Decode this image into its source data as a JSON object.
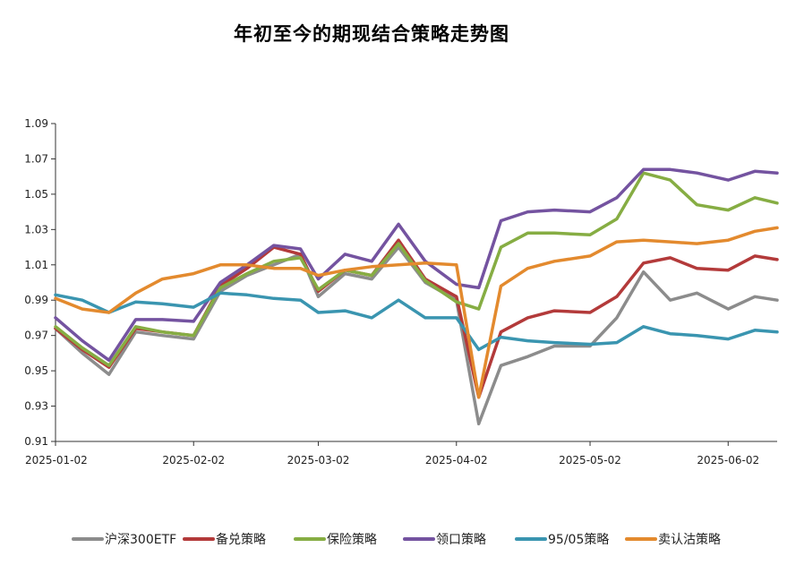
{
  "chart_data": {
    "type": "line",
    "title": "年初至今的期现结合策略走势图",
    "xlabel": "",
    "ylabel": "",
    "ylim": [
      0.91,
      1.09
    ],
    "grid": false,
    "legend_position": "bottom",
    "y_ticks": [
      "0.91",
      "0.93",
      "0.95",
      "0.97",
      "0.99",
      "1.01",
      "1.03",
      "1.05",
      "1.07",
      "1.09"
    ],
    "x_ticks": [
      "2025-01-02",
      "2025-02-02",
      "2025-03-02",
      "2025-04-02",
      "2025-05-02",
      "2025-06-02"
    ],
    "x": [
      "2025-01-02",
      "2025-01-08",
      "2025-01-14",
      "2025-01-20",
      "2025-01-26",
      "2025-02-02",
      "2025-02-08",
      "2025-02-14",
      "2025-02-20",
      "2025-02-26",
      "2025-03-02",
      "2025-03-08",
      "2025-03-14",
      "2025-03-20",
      "2025-03-26",
      "2025-04-02",
      "2025-04-07",
      "2025-04-12",
      "2025-04-18",
      "2025-04-24",
      "2025-05-02",
      "2025-05-08",
      "2025-05-14",
      "2025-05-20",
      "2025-05-26",
      "2025-06-02",
      "2025-06-08",
      "2025-06-13"
    ],
    "series": [
      {
        "name": "沪深300ETF",
        "color": "#8c8c8c",
        "values": [
          0.974,
          0.96,
          0.948,
          0.972,
          0.97,
          0.968,
          0.995,
          1.004,
          1.01,
          1.016,
          0.992,
          1.005,
          1.002,
          1.02,
          1.0,
          0.99,
          0.92,
          0.953,
          0.958,
          0.964,
          0.964,
          0.98,
          1.006,
          0.99,
          0.994,
          0.985,
          0.992,
          0.99
        ]
      },
      {
        "name": "备兑策略",
        "color": "#b33a3a",
        "values": [
          0.974,
          0.962,
          0.952,
          0.974,
          0.972,
          0.97,
          0.998,
          1.008,
          1.02,
          1.016,
          0.995,
          1.007,
          1.004,
          1.024,
          1.002,
          0.992,
          0.935,
          0.972,
          0.98,
          0.984,
          0.983,
          0.992,
          1.011,
          1.014,
          1.008,
          1.007,
          1.015,
          1.013
        ]
      },
      {
        "name": "保险策略",
        "color": "#86ad43",
        "values": [
          0.975,
          0.963,
          0.953,
          0.975,
          0.972,
          0.97,
          0.997,
          1.005,
          1.012,
          1.014,
          0.996,
          1.007,
          1.004,
          1.022,
          1.001,
          0.989,
          0.985,
          1.02,
          1.028,
          1.028,
          1.027,
          1.036,
          1.062,
          1.058,
          1.044,
          1.041,
          1.048,
          1.045
        ]
      },
      {
        "name": "领口策略",
        "color": "#7453a0",
        "values": [
          0.98,
          0.967,
          0.956,
          0.979,
          0.979,
          0.978,
          1.0,
          1.01,
          1.021,
          1.019,
          1.002,
          1.016,
          1.012,
          1.033,
          1.012,
          0.999,
          0.997,
          1.035,
          1.04,
          1.041,
          1.04,
          1.048,
          1.064,
          1.064,
          1.062,
          1.058,
          1.063,
          1.062
        ]
      },
      {
        "name": "95/05策略",
        "color": "#3a95b0",
        "values": [
          0.993,
          0.99,
          0.983,
          0.989,
          0.988,
          0.986,
          0.994,
          0.993,
          0.991,
          0.99,
          0.983,
          0.984,
          0.98,
          0.99,
          0.98,
          0.98,
          0.962,
          0.969,
          0.967,
          0.966,
          0.965,
          0.966,
          0.975,
          0.971,
          0.97,
          0.968,
          0.973,
          0.972
        ]
      },
      {
        "name": "卖认沽策略",
        "color": "#e38a2e",
        "values": [
          0.991,
          0.985,
          0.983,
          0.994,
          1.002,
          1.005,
          1.01,
          1.01,
          1.008,
          1.008,
          1.004,
          1.007,
          1.009,
          1.01,
          1.011,
          1.01,
          0.935,
          0.998,
          1.008,
          1.012,
          1.015,
          1.023,
          1.024,
          1.023,
          1.022,
          1.024,
          1.029,
          1.031
        ]
      }
    ]
  }
}
